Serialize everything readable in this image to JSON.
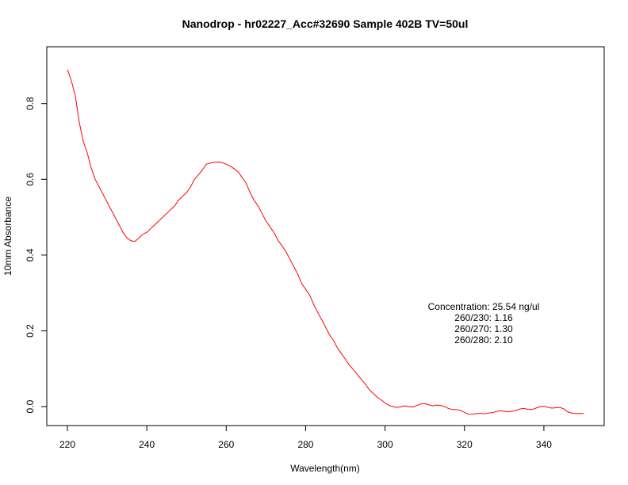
{
  "chart_data": {
    "type": "line",
    "title": "Nanodrop - hr02227_Acc#32690 Sample 402B TV=50ul",
    "xlabel": "Wavelength(nm)",
    "ylabel": "10mm Absorbance",
    "xlim": [
      220,
      350
    ],
    "ylim": [
      -0.05,
      0.95
    ],
    "xticks": [
      220,
      240,
      260,
      280,
      300,
      320,
      340
    ],
    "xtick_labels": [
      "220",
      "240",
      "260",
      "280",
      "300",
      "320",
      "340"
    ],
    "yticks": [
      0.0,
      0.2,
      0.4,
      0.6,
      0.8
    ],
    "ytick_labels": [
      "0.0",
      "0.2",
      "0.4",
      "0.6",
      "0.8"
    ],
    "series_color": "#ff0000",
    "x": [
      220,
      221,
      222,
      223,
      224,
      225,
      226,
      227,
      228,
      229,
      230,
      231,
      232,
      233,
      234,
      235,
      236,
      237,
      238,
      239,
      240,
      241,
      242,
      243,
      244,
      245,
      246,
      247,
      248,
      249,
      250,
      251,
      252,
      253,
      254,
      255,
      256,
      257,
      258,
      259,
      260,
      261,
      262,
      263,
      264,
      265,
      266,
      267,
      268,
      269,
      270,
      271,
      272,
      273,
      274,
      275,
      276,
      277,
      278,
      279,
      280,
      281,
      282,
      283,
      284,
      285,
      286,
      287,
      288,
      289,
      290,
      291,
      292,
      293,
      294,
      295,
      296,
      297,
      298,
      299,
      300,
      301,
      302,
      303,
      304,
      305,
      306,
      307,
      308,
      309,
      310,
      311,
      312,
      313,
      314,
      315,
      316,
      317,
      318,
      319,
      320,
      321,
      322,
      323,
      324,
      325,
      326,
      327,
      328,
      329,
      330,
      331,
      332,
      333,
      334,
      335,
      336,
      337,
      338,
      339,
      340,
      341,
      342,
      343,
      344,
      345,
      346,
      347,
      348,
      349,
      350
    ],
    "y": [
      0.89,
      0.86,
      0.82,
      0.75,
      0.7,
      0.67,
      0.63,
      0.6,
      0.58,
      0.56,
      0.54,
      0.52,
      0.5,
      0.48,
      0.46,
      0.445,
      0.438,
      0.436,
      0.445,
      0.455,
      0.46,
      0.47,
      0.48,
      0.49,
      0.5,
      0.51,
      0.52,
      0.53,
      0.545,
      0.555,
      0.565,
      0.58,
      0.6,
      0.612,
      0.625,
      0.64,
      0.643,
      0.645,
      0.646,
      0.644,
      0.64,
      0.635,
      0.628,
      0.62,
      0.605,
      0.59,
      0.565,
      0.545,
      0.53,
      0.51,
      0.49,
      0.475,
      0.46,
      0.44,
      0.425,
      0.41,
      0.39,
      0.37,
      0.35,
      0.325,
      0.31,
      0.295,
      0.27,
      0.25,
      0.23,
      0.21,
      0.19,
      0.175,
      0.155,
      0.14,
      0.125,
      0.11,
      0.098,
      0.085,
      0.072,
      0.06,
      0.045,
      0.035,
      0.025,
      0.018,
      0.01,
      0.003,
      0.0,
      -0.002,
      0.0,
      0.002,
      0.0,
      -0.001,
      0.003,
      0.007,
      0.008,
      0.005,
      0.002,
      0.004,
      0.003,
      0.0,
      -0.005,
      -0.008,
      -0.008,
      -0.01,
      -0.015,
      -0.02,
      -0.02,
      -0.018,
      -0.018,
      -0.019,
      -0.017,
      -0.016,
      -0.013,
      -0.011,
      -0.012,
      -0.014,
      -0.012,
      -0.01,
      -0.006,
      -0.005,
      -0.007,
      -0.008,
      -0.004,
      0.0,
      0.001,
      -0.002,
      -0.004,
      -0.003,
      -0.002,
      -0.006,
      -0.014,
      -0.017,
      -0.018,
      -0.018,
      -0.018
    ],
    "annotations": [
      "Concentration: 25.54 ng/ul",
      "260/230: 1.16",
      "260/270: 1.30",
      "260/280: 2.10"
    ]
  }
}
